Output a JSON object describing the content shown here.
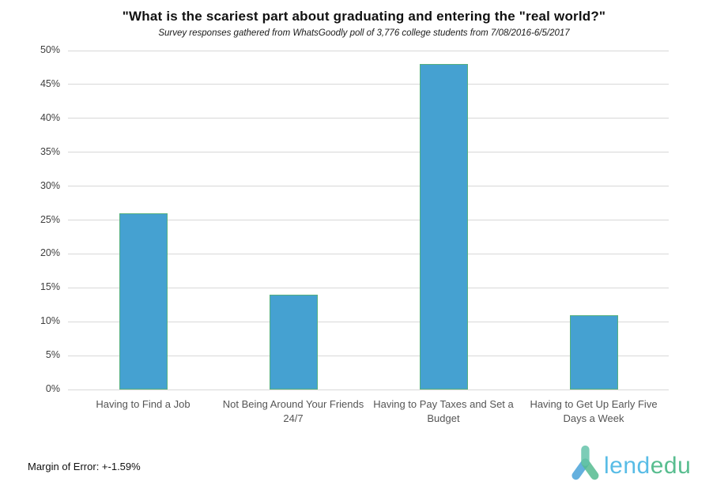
{
  "header": {
    "title": "\"What is the scariest part about graduating and entering the \"real world?\"",
    "subtitle": "Survey responses gathered from WhatsGoodly poll of 3,776 college students from 7/08/2016-6/5/2017"
  },
  "chart_data": {
    "type": "bar",
    "title": "\"What is the scariest part about graduating and entering the \"real world?\"",
    "subtitle": "Survey responses gathered from WhatsGoodly poll of 3,776 college students from 7/08/2016-6/5/2017",
    "categories": [
      "Having to Find a Job",
      "Not Being Around Your Friends 24/7",
      "Having to Pay Taxes and Set a Budget",
      "Having to Get Up Early Five Days a Week"
    ],
    "values": [
      26,
      14,
      48,
      11
    ],
    "value_unit": "%",
    "xlabel": "",
    "ylabel": "",
    "ylim": [
      0,
      50
    ],
    "ytick_step": 5,
    "ytick_suffix": "%",
    "grid": true,
    "legend": "none",
    "bar_fill_color": "#45A1D1",
    "bar_border_color": "#55B07F",
    "gridline_color": "#d8d8d8"
  },
  "footer": {
    "margin_of_error": "Margin of Error: +-1.59%",
    "logo": {
      "name": "lendedu",
      "text_blue": "lend",
      "text_green": "edu",
      "blue": "#58BCE6",
      "green": "#58BD8F",
      "icon_head_color": "#66C4AB",
      "icon_left_leg_color": "#4AA3D9",
      "icon_right_leg_color": "#55BB90"
    }
  }
}
